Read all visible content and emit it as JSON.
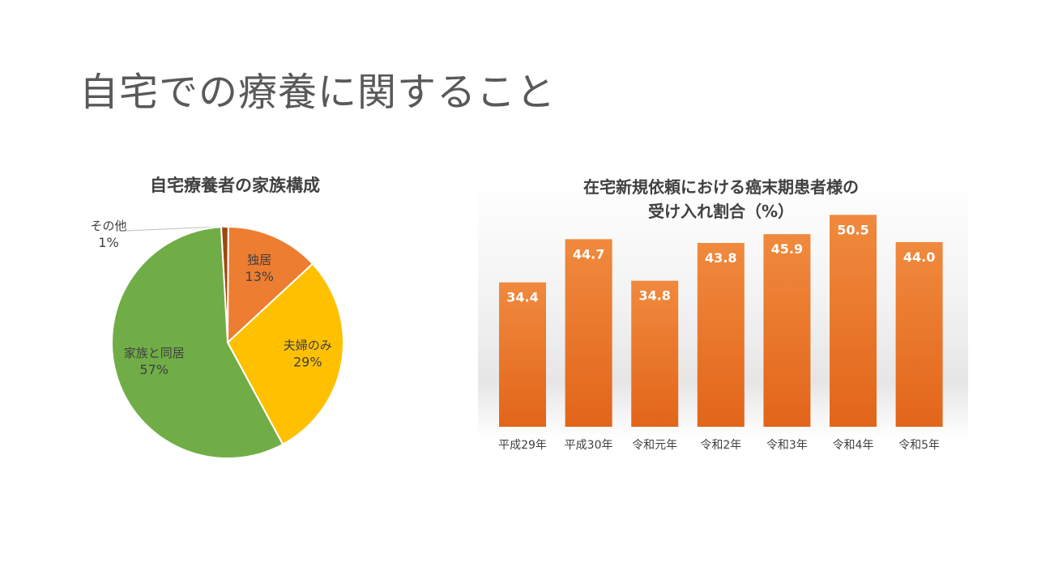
{
  "slide": {
    "title": "自宅での療養に関すること"
  },
  "chart_data": [
    {
      "type": "pie",
      "title": "自宅療養者の家族構成",
      "slices": [
        {
          "label": "その他",
          "value": 1,
          "display": "1%",
          "color": "#9E480E"
        },
        {
          "label": "独居",
          "value": 13,
          "display": "13%",
          "color": "#ED7D31"
        },
        {
          "label": "夫婦のみ",
          "value": 29,
          "display": "29%",
          "color": "#FFC000"
        },
        {
          "label": "家族と同居",
          "value": 57,
          "display": "57%",
          "color": "#70AD47"
        }
      ]
    },
    {
      "type": "bar",
      "title": "在宅新規依頼における癌末期患者様の受け入れ割合（%）",
      "title_lines": [
        "在宅新規依頼における癌末期患者様の",
        "受け入れ割合（%）"
      ],
      "categories": [
        "平成29年",
        "平成30年",
        "令和元年",
        "令和2年",
        "令和3年",
        "令和4年",
        "令和5年"
      ],
      "values": [
        34.4,
        44.7,
        34.8,
        43.8,
        45.9,
        50.5,
        44.0
      ],
      "value_labels": [
        "34.4",
        "44.7",
        "34.8",
        "43.8",
        "45.9",
        "50.5",
        "44.0"
      ],
      "ylim": [
        0,
        55
      ],
      "color": "#ED7D31",
      "grid": false
    }
  ]
}
